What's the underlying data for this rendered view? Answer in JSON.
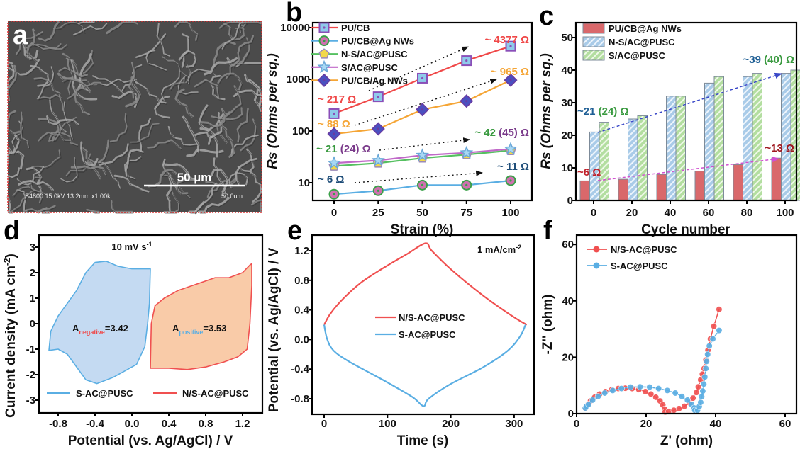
{
  "panels": {
    "a": {
      "label": "a",
      "scale_bar": "50 µm",
      "info_text": "S4800 15.0kV 13.2mm x1.00k",
      "scale_text": "50.0um"
    },
    "b": {
      "label": "b"
    },
    "c": {
      "label": "c"
    },
    "d": {
      "label": "d"
    },
    "e": {
      "label": "e"
    },
    "f": {
      "label": "f"
    }
  },
  "chart_data": [
    {
      "id": "b",
      "type": "line",
      "yscale": "log",
      "xlabel": "Strain (%)",
      "ylabel": "Rs (Ohms per sq.)",
      "x": [
        0,
        25,
        50,
        75,
        100
      ],
      "xlim": [
        -10,
        115
      ],
      "ylim": [
        5,
        11000
      ],
      "xticks": [
        "0",
        "25",
        "50",
        "75",
        "100"
      ],
      "yticks": [
        "10",
        "100",
        "1000",
        "10000"
      ],
      "legend_placement": "top-left",
      "series": [
        {
          "name": "PU/CB",
          "values": [
            217,
            460,
            1050,
            2300,
            4377
          ],
          "line": "#f04848",
          "marker": "square",
          "fill": "#8fcbea",
          "edge": "#8a4fb8"
        },
        {
          "name": "PU/CB@Ag NWs",
          "values": [
            6,
            7,
            9,
            9,
            11
          ],
          "line": "#5aaee3",
          "marker": "circle",
          "fill": "#d070b0",
          "edge": "#3aa048"
        },
        {
          "name": "N-S/AC@PUSC",
          "values": [
            21,
            24,
            30,
            35,
            42
          ],
          "line": "#55c060",
          "marker": "pentagon",
          "fill": "#f2d84a",
          "edge": "#9a8ab8"
        },
        {
          "name": "S/AC@PUSC",
          "values": [
            24,
            27,
            34,
            38,
            45
          ],
          "line": "#c068c8",
          "marker": "star",
          "fill": "#a8d8f4",
          "edge": "#6aa8d8"
        },
        {
          "name": "PU/CB/Ag NWs",
          "values": [
            88,
            110,
            260,
            380,
            965
          ],
          "line": "#f5a535",
          "marker": "diamond",
          "fill": "#4a50c0",
          "edge": "#6a3aa0"
        }
      ],
      "annotations": [
        {
          "parts": [
            {
              "text": "~ 4377 Ω",
              "color": "#f04848"
            }
          ]
        },
        {
          "parts": [
            {
              "text": "~ 965 Ω",
              "color": "#f5a535"
            }
          ]
        },
        {
          "parts": [
            {
              "text": "~ 217 Ω",
              "color": "#f04848"
            }
          ]
        },
        {
          "parts": [
            {
              "text": "~ 88 Ω",
              "color": "#f5a535"
            }
          ]
        },
        {
          "parts": [
            {
              "text": "~ 42 ",
              "color": "#3a9a40"
            },
            {
              "text": "(45) Ω",
              "color": "#7a3a8a"
            }
          ]
        },
        {
          "parts": [
            {
              "text": "~ 21 ",
              "color": "#3a9a40"
            },
            {
              "text": "(24) Ω",
              "color": "#7a3a8a"
            }
          ]
        },
        {
          "parts": [
            {
              "text": "~ 11 Ω",
              "color": "#1f4e79"
            }
          ]
        },
        {
          "parts": [
            {
              "text": "~ 6 Ω",
              "color": "#1f4e79"
            }
          ]
        }
      ]
    },
    {
      "id": "c",
      "type": "bar",
      "xlabel": "Cycle number",
      "ylabel": "Rs (Ohms per sq.)",
      "categories": [
        "0",
        "20",
        "40",
        "60",
        "80",
        "100"
      ],
      "ylim": [
        0,
        55
      ],
      "yticks": [
        "0",
        "10",
        "20",
        "30",
        "40",
        "50"
      ],
      "legend_placement": "top-left",
      "series": [
        {
          "name": "PU/CB@Ag NWs",
          "values": [
            6,
            6.5,
            8,
            9,
            11,
            13
          ],
          "color": "#d9686b",
          "hatch": false
        },
        {
          "name": "N-S/AC@PUSC",
          "values": [
            21,
            25,
            32,
            36,
            38,
            39
          ],
          "color": "#a9cbe8",
          "hatch": true
        },
        {
          "name": "S/AC@PUSC",
          "values": [
            24,
            26,
            32,
            38,
            39,
            40
          ],
          "color": "#b3dea0",
          "hatch": true
        }
      ],
      "annotations": [
        {
          "parts": [
            {
              "text": "~21 ",
              "color": "#1f5f95"
            },
            {
              "text": "(24) Ω",
              "color": "#3a9a40"
            }
          ]
        },
        {
          "parts": [
            {
              "text": "~39 ",
              "color": "#1f5f95"
            },
            {
              "text": "(40) Ω",
              "color": "#3a9a40"
            }
          ]
        },
        {
          "parts": [
            {
              "text": "~6 Ω",
              "color": "#c0202a"
            }
          ]
        },
        {
          "parts": [
            {
              "text": "~13 Ω",
              "color": "#a01820"
            }
          ]
        }
      ]
    },
    {
      "id": "d",
      "type": "line",
      "xlabel": "Potential (vs. Ag/AgCl) / V",
      "ylabel_main": "Current density (mA cm",
      "ylabel_sup": "-2",
      "ylabel_end": ")",
      "xlim": [
        -1.0,
        1.4
      ],
      "ylim": [
        -3.5,
        3.5
      ],
      "xticks": [
        "-0.8",
        "-0.4",
        "0.0",
        "0.4",
        "0.8",
        "1.2"
      ],
      "yticks": [
        "-3",
        "-2",
        "-1",
        "0",
        "1",
        "2",
        "3"
      ],
      "condition_main": "10 mV s",
      "condition_sup": "-1",
      "legend_placement": "bottom",
      "area_labels": [
        {
          "main": "A",
          "sub": "negative",
          "value": "=3.42",
          "sub_color": "#f04848"
        },
        {
          "main": "A",
          "sub": "positive",
          "value": "=3.53",
          "sub_color": "#5aaee3"
        }
      ],
      "series": [
        {
          "name": "S-AC@PUSC",
          "color": "#5aaee3",
          "fill": "#c4daf2",
          "points": [
            [
              -0.9,
              -1.05
            ],
            [
              -0.88,
              -0.3
            ],
            [
              -0.8,
              0.3
            ],
            [
              -0.7,
              0.8
            ],
            [
              -0.6,
              1.3
            ],
            [
              -0.5,
              2.0
            ],
            [
              -0.4,
              2.4
            ],
            [
              -0.28,
              2.45
            ],
            [
              -0.15,
              2.25
            ],
            [
              0.0,
              2.15
            ],
            [
              0.2,
              2.15
            ],
            [
              0.19,
              0.8
            ],
            [
              0.17,
              0.0
            ],
            [
              0.14,
              -0.9
            ],
            [
              0.05,
              -1.6
            ],
            [
              -0.1,
              -1.9
            ],
            [
              -0.2,
              -2.1
            ],
            [
              -0.38,
              -2.35
            ],
            [
              -0.5,
              -2.2
            ],
            [
              -0.6,
              -1.7
            ],
            [
              -0.7,
              -1.2
            ],
            [
              -0.8,
              -1.0
            ],
            [
              -0.9,
              -1.05
            ]
          ]
        },
        {
          "name": "N/S-AC@PUSC",
          "color": "#f05050",
          "fill": "#f9cba8",
          "points": [
            [
              0.2,
              -1.75
            ],
            [
              0.21,
              0.0
            ],
            [
              0.25,
              0.7
            ],
            [
              0.35,
              1.0
            ],
            [
              0.5,
              1.3
            ],
            [
              0.7,
              1.55
            ],
            [
              0.9,
              1.8
            ],
            [
              1.05,
              1.8
            ],
            [
              1.2,
              2.0
            ],
            [
              1.28,
              2.3
            ],
            [
              1.3,
              2.35
            ],
            [
              1.3,
              1.5
            ],
            [
              1.28,
              0.0
            ],
            [
              1.25,
              -1.0
            ],
            [
              1.15,
              -1.3
            ],
            [
              1.0,
              -1.5
            ],
            [
              0.8,
              -1.7
            ],
            [
              0.6,
              -1.8
            ],
            [
              0.4,
              -1.75
            ],
            [
              0.2,
              -1.75
            ]
          ]
        }
      ]
    },
    {
      "id": "e",
      "type": "line",
      "xlabel": "Time (s)",
      "ylabel": "Potential (vs. Ag/AgCl) / V",
      "xlim": [
        -20,
        335
      ],
      "ylim": [
        -0.95,
        1.4
      ],
      "xticks": [
        "0",
        "100",
        "200",
        "300"
      ],
      "yticks": [
        "-0.8",
        "-0.4",
        "0.0",
        "0.4",
        "0.8",
        "1.2"
      ],
      "condition_main": "1 mA/cm",
      "condition_sup": "-2",
      "legend_placement": "center",
      "series": [
        {
          "name": "N/S-AC@PUSC",
          "color": "#f05050",
          "points": [
            [
              0,
              0.2
            ],
            [
              10,
              0.35
            ],
            [
              30,
              0.55
            ],
            [
              60,
              0.78
            ],
            [
              100,
              1.0
            ],
            [
              130,
              1.15
            ],
            [
              160,
              1.3
            ],
            [
              170,
              1.2
            ],
            [
              200,
              0.95
            ],
            [
              250,
              0.6
            ],
            [
              300,
              0.3
            ],
            [
              320,
              0.2
            ]
          ]
        },
        {
          "name": "S-AC@PUSC",
          "color": "#5aaee3",
          "points": [
            [
              0,
              0.2
            ],
            [
              5,
              0.0
            ],
            [
              15,
              -0.15
            ],
            [
              40,
              -0.3
            ],
            [
              100,
              -0.58
            ],
            [
              140,
              -0.78
            ],
            [
              157,
              -0.9
            ],
            [
              165,
              -0.8
            ],
            [
              200,
              -0.6
            ],
            [
              250,
              -0.38
            ],
            [
              290,
              -0.15
            ],
            [
              310,
              0.05
            ],
            [
              318,
              0.2
            ]
          ]
        }
      ]
    },
    {
      "id": "f",
      "type": "scatter",
      "xlabel": "Z' (ohm)",
      "ylabel": "-Z'' (ohm)",
      "xlim": [
        0,
        63
      ],
      "ylim": [
        0,
        63
      ],
      "xticks": [
        "0",
        "20",
        "40",
        "60"
      ],
      "yticks": [
        "0",
        "20",
        "40",
        "60"
      ],
      "legend_placement": "top-left",
      "series": [
        {
          "name": "N/S-AC@PUSC",
          "color": "#f05050",
          "points": [
            [
              2.5,
              2.0
            ],
            [
              2.7,
              2.4
            ],
            [
              3.2,
              3.1
            ],
            [
              4.0,
              4.5
            ],
            [
              5.2,
              5.8
            ],
            [
              6.6,
              6.9
            ],
            [
              8.3,
              7.8
            ],
            [
              10.1,
              8.5
            ],
            [
              12.0,
              8.9
            ],
            [
              14,
              9
            ],
            [
              16.0,
              8.9
            ],
            [
              17.9,
              8.5
            ],
            [
              19.8,
              7.8
            ],
            [
              21.4,
              6.9
            ],
            [
              22.8,
              5.8
            ],
            [
              24.0,
              4.5
            ],
            [
              24.8,
              3.1
            ],
            [
              25.3,
              1.6
            ],
            [
              25.5,
              0.6
            ],
            [
              26.5,
              0.8
            ],
            [
              28,
              1.2
            ],
            [
              29.5,
              1.8
            ],
            [
              31,
              2.6
            ],
            [
              32.5,
              3.8
            ],
            [
              33.5,
              5.5
            ],
            [
              34.5,
              7.5
            ],
            [
              35,
              9.5
            ],
            [
              35.7,
              12
            ],
            [
              36.2,
              14
            ],
            [
              36.7,
              16
            ],
            [
              37.2,
              19
            ],
            [
              37.8,
              22.5
            ],
            [
              38.5,
              26.5
            ],
            [
              39.5,
              31
            ],
            [
              41,
              37
            ]
          ]
        },
        {
          "name": "S-AC@PUSC",
          "color": "#5aaee3",
          "points": [
            [
              2.5,
              2.0
            ],
            [
              2.8,
              2.6
            ],
            [
              3.45,
              3.3
            ],
            [
              4.6,
              4.8
            ],
            [
              6.2,
              6.1
            ],
            [
              8.1,
              7.3
            ],
            [
              10.4,
              8.2
            ],
            [
              12.9,
              8.9
            ],
            [
              15.5,
              9.4
            ],
            [
              18.25,
              9.5
            ],
            [
              21.0,
              9.4
            ],
            [
              23.6,
              8.9
            ],
            [
              26.1,
              8.2
            ],
            [
              28.4,
              7.3
            ],
            [
              30.3,
              6.1
            ],
            [
              31.9,
              4.8
            ],
            [
              33.05,
              3.3
            ],
            [
              33.8,
              2.0
            ],
            [
              34.0,
              1.2
            ],
            [
              34.8,
              1.2
            ],
            [
              35.3,
              2.5
            ],
            [
              35.7,
              4
            ],
            [
              36,
              6
            ],
            [
              36.3,
              8
            ],
            [
              36.6,
              10.5
            ],
            [
              36.9,
              13
            ],
            [
              37.2,
              16
            ],
            [
              37.4,
              18.5
            ],
            [
              37.7,
              21
            ],
            [
              38.2,
              24
            ],
            [
              39.2,
              26.5
            ],
            [
              41,
              29.5
            ]
          ]
        }
      ]
    }
  ]
}
